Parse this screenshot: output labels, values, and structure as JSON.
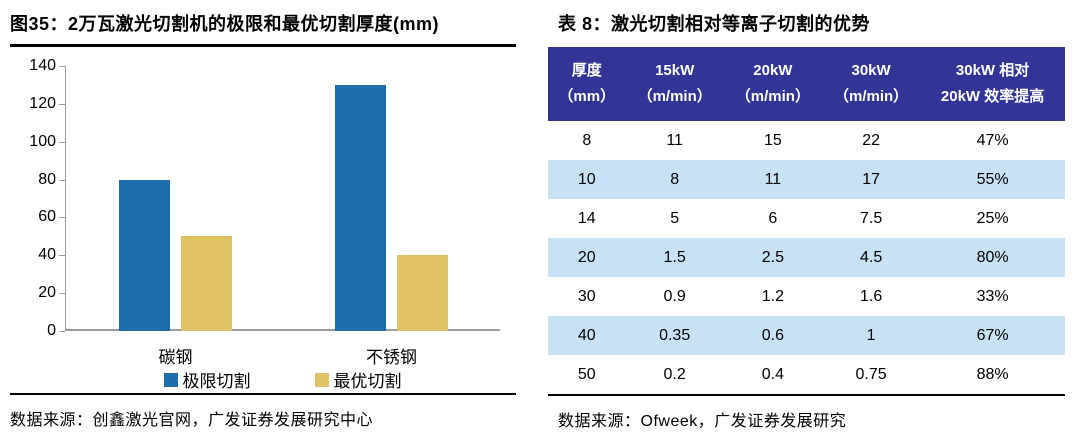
{
  "colors": {
    "limit_series": "#1F6EAC",
    "optimal_series": "#DFC261",
    "table_header_bg": "#323596",
    "table_stripe_bg": "#C7E1F5",
    "axis_line": "#9C9C9C",
    "rule_line": "#000000"
  },
  "left_panel": {
    "title": "图35：2万瓦激光切割机的极限和最优切割厚度(mm)",
    "source": "数据来源：创鑫激光官网，广发证券发展研究中心"
  },
  "right_panel": {
    "title": "表 8：激光切割相对等离子切割的优势",
    "source": "数据来源：Ofweek，广发证券发展研究"
  },
  "chart_data": [
    {
      "type": "bar",
      "title": "2万瓦激光切割机的极限和最优切割厚度(mm)",
      "categories": [
        "碳钢",
        "不锈钢"
      ],
      "series": [
        {
          "name": "极限切割",
          "values": [
            80,
            130
          ],
          "color": "#1F6EAC"
        },
        {
          "name": "最优切割",
          "values": [
            50,
            40
          ],
          "color": "#DFC261"
        }
      ],
      "xlabel": "",
      "ylabel": "",
      "ylim": [
        0,
        140
      ],
      "yticks": [
        0,
        20,
        40,
        60,
        80,
        100,
        120,
        140
      ],
      "grid": false,
      "legend_position": "bottom"
    },
    {
      "type": "table",
      "title": "激光切割相对等离子切割的优势",
      "columns": [
        {
          "line1": "厚度",
          "line2": "（mm）"
        },
        {
          "line1": "15kW",
          "line2": "（m/min）"
        },
        {
          "line1": "20kW",
          "line2": "（m/min）"
        },
        {
          "line1": "30kW",
          "line2": "（m/min）"
        },
        {
          "line1": "30kW 相对",
          "line2": "20kW 效率提高"
        }
      ],
      "rows": [
        [
          "8",
          "11",
          "15",
          "22",
          "47%"
        ],
        [
          "10",
          "8",
          "11",
          "17",
          "55%"
        ],
        [
          "14",
          "5",
          "6",
          "7.5",
          "25%"
        ],
        [
          "20",
          "1.5",
          "2.5",
          "4.5",
          "80%"
        ],
        [
          "30",
          "0.9",
          "1.2",
          "1.6",
          "33%"
        ],
        [
          "40",
          "0.35",
          "0.6",
          "1",
          "67%"
        ],
        [
          "50",
          "0.2",
          "0.4",
          "0.75",
          "88%"
        ]
      ]
    }
  ]
}
